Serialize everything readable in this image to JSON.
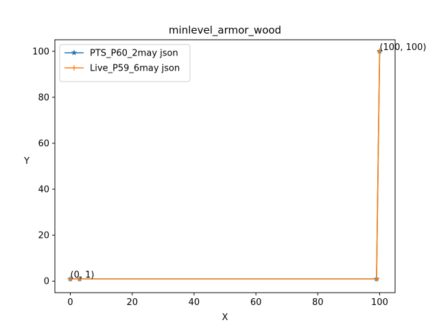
{
  "chart_data": {
    "type": "line",
    "title": "minlevel_armor_wood",
    "xlabel": "X",
    "ylabel": "Y",
    "xlim": [
      -5,
      105
    ],
    "ylim": [
      -5,
      105
    ],
    "xticks": [
      0,
      20,
      40,
      60,
      80,
      100
    ],
    "yticks": [
      0,
      20,
      40,
      60,
      80,
      100
    ],
    "grid": false,
    "legend_position": "upper-left",
    "series": [
      {
        "name": "PTS_P60_2may json",
        "color": "#1f77b4",
        "marker": "star",
        "x": [
          0,
          3,
          99,
          100
        ],
        "y": [
          1,
          1,
          1,
          100
        ]
      },
      {
        "name": "Live_P59_6may json",
        "color": "#ff7f0e",
        "marker": "plus",
        "x": [
          0,
          3,
          99,
          100
        ],
        "y": [
          1,
          1,
          1,
          100
        ]
      }
    ],
    "annotations": [
      {
        "text": "(0, 1)",
        "x": 0,
        "y": 1
      },
      {
        "text": "(100, 100)",
        "x": 100,
        "y": 100
      }
    ]
  }
}
